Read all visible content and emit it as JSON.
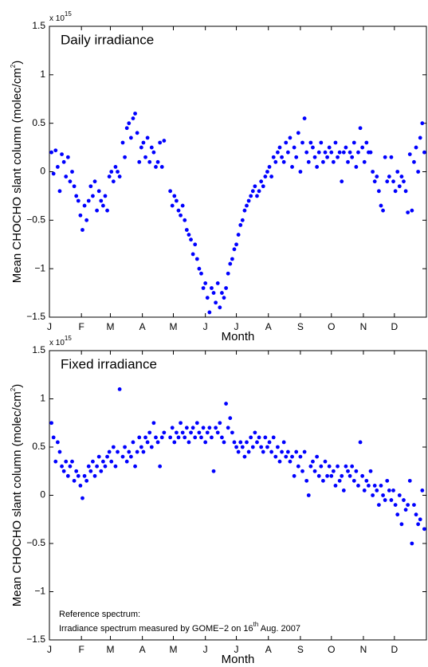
{
  "chart_data": [
    {
      "type": "scatter",
      "title": "Daily irradiance",
      "xlabel": "Month",
      "ylabel": "Mean CHOCHO slant column (molec/cm",
      "ylabel_sup": "2",
      "ylabel_end": ")",
      "multiplier": "x 10",
      "multiplier_sup": "15",
      "color": "#0000ff",
      "xlim": [
        1,
        366
      ],
      "ylim": [
        -1.5,
        1.5
      ],
      "xticks": [
        {
          "value": 1,
          "label": "J"
        },
        {
          "value": 32,
          "label": "F"
        },
        {
          "value": 60,
          "label": "M"
        },
        {
          "value": 91,
          "label": "A"
        },
        {
          "value": 121,
          "label": "M"
        },
        {
          "value": 152,
          "label": "J"
        },
        {
          "value": 182,
          "label": "J"
        },
        {
          "value": 213,
          "label": "A"
        },
        {
          "value": 244,
          "label": "S"
        },
        {
          "value": 274,
          "label": "O"
        },
        {
          "value": 305,
          "label": "N"
        },
        {
          "value": 335,
          "label": "D"
        }
      ],
      "yticks": [
        {
          "value": -1.5,
          "label": "−1.5"
        },
        {
          "value": -1,
          "label": "−1"
        },
        {
          "value": -0.5,
          "label": "−0.5"
        },
        0,
        0.5,
        1,
        1.5
      ],
      "x": [
        3,
        5,
        7,
        9,
        11,
        13,
        15,
        17,
        19,
        21,
        23,
        25,
        27,
        29,
        31,
        33,
        35,
        37,
        39,
        41,
        43,
        45,
        47,
        49,
        51,
        53,
        55,
        57,
        59,
        61,
        63,
        65,
        67,
        69,
        72,
        74,
        76,
        78,
        80,
        82,
        84,
        86,
        88,
        90,
        92,
        94,
        96,
        98,
        100,
        102,
        104,
        106,
        108,
        110,
        112,
        118,
        120,
        122,
        124,
        126,
        128,
        130,
        132,
        134,
        136,
        138,
        140,
        142,
        144,
        146,
        148,
        150,
        152,
        154,
        156,
        158,
        160,
        162,
        164,
        166,
        168,
        170,
        172,
        174,
        176,
        178,
        180,
        182,
        184,
        186,
        188,
        190,
        192,
        194,
        196,
        198,
        200,
        202,
        204,
        206,
        208,
        210,
        212,
        214,
        216,
        218,
        220,
        222,
        224,
        226,
        228,
        230,
        232,
        234,
        236,
        238,
        240,
        242,
        244,
        246,
        248,
        250,
        252,
        254,
        256,
        258,
        260,
        262,
        264,
        266,
        268,
        270,
        272,
        274,
        276,
        278,
        280,
        282,
        284,
        286,
        288,
        290,
        292,
        294,
        296,
        298,
        300,
        302,
        304,
        306,
        308,
        310,
        312,
        314,
        316,
        318,
        320,
        322,
        324,
        326,
        328,
        330,
        332,
        334,
        336,
        338,
        340,
        342,
        344,
        346,
        348,
        350,
        352,
        354,
        356,
        358,
        360,
        362,
        364
      ],
      "values": [
        0.2,
        -0.02,
        0.22,
        0.05,
        -0.2,
        0.18,
        0.1,
        -0.05,
        0.15,
        -0.1,
        0.0,
        -0.15,
        -0.25,
        -0.3,
        -0.45,
        -0.6,
        -0.35,
        -0.5,
        -0.3,
        -0.15,
        -0.25,
        -0.1,
        -0.4,
        -0.2,
        -0.3,
        -0.35,
        -0.25,
        -0.4,
        -0.05,
        0.0,
        -0.1,
        0.05,
        0.0,
        -0.05,
        0.3,
        0.15,
        0.45,
        0.5,
        0.35,
        0.55,
        0.6,
        0.4,
        0.1,
        0.25,
        0.3,
        0.15,
        0.35,
        0.1,
        0.25,
        0.2,
        0.05,
        0.1,
        0.3,
        0.05,
        0.32,
        -0.2,
        -0.35,
        -0.25,
        -0.3,
        -0.4,
        -0.45,
        -0.35,
        -0.5,
        -0.6,
        -0.65,
        -0.7,
        -0.85,
        -0.75,
        -0.9,
        -1.0,
        -1.05,
        -1.2,
        -1.15,
        -1.3,
        -1.45,
        -1.2,
        -1.25,
        -1.35,
        -1.15,
        -1.4,
        -1.25,
        -1.3,
        -1.2,
        -1.05,
        -0.95,
        -0.9,
        -0.8,
        -0.75,
        -0.65,
        -0.55,
        -0.5,
        -0.4,
        -0.35,
        -0.3,
        -0.25,
        -0.2,
        -0.15,
        -0.25,
        -0.2,
        -0.1,
        -0.15,
        -0.05,
        0.0,
        0.05,
        -0.05,
        0.15,
        0.1,
        0.2,
        0.25,
        0.15,
        0.1,
        0.3,
        0.2,
        0.35,
        0.05,
        0.25,
        0.15,
        0.4,
        0.0,
        0.3,
        0.55,
        0.2,
        0.1,
        0.3,
        0.25,
        0.15,
        0.05,
        0.2,
        0.3,
        0.1,
        0.2,
        0.15,
        0.25,
        0.2,
        0.1,
        0.3,
        0.15,
        0.2,
        -0.1,
        0.2,
        0.25,
        0.1,
        0.2,
        0.15,
        0.3,
        0.05,
        0.2,
        0.45,
        0.25,
        0.1,
        0.3,
        0.2,
        0.2,
        0.0,
        -0.1,
        -0.05,
        -0.2,
        -0.35,
        -0.4,
        0.15,
        -0.1,
        -0.05,
        0.15,
        -0.1,
        -0.2,
        0.0,
        -0.15,
        -0.05,
        -0.1,
        -0.2,
        -0.42,
        0.18,
        -0.4,
        0.1,
        0.25,
        0.0,
        0.35,
        0.5,
        0.2
      ]
    },
    {
      "type": "scatter",
      "title": "Fixed irradiance",
      "xlabel": "Month",
      "ylabel": "Mean CHOCHO slant column (molec/cm",
      "ylabel_sup": "2",
      "ylabel_end": ")",
      "multiplier": "x 10",
      "multiplier_sup": "15",
      "color": "#0000ff",
      "note": "Reference spectrum:",
      "note_line2": "Irradiance spectrum measured by GOME−2 on 16",
      "note_sup": "th",
      "note_end": " Aug. 2007",
      "xlim": [
        1,
        366
      ],
      "ylim": [
        -1.5,
        1.5
      ],
      "xticks": [
        {
          "value": 1,
          "label": "J"
        },
        {
          "value": 32,
          "label": "F"
        },
        {
          "value": 60,
          "label": "M"
        },
        {
          "value": 91,
          "label": "A"
        },
        {
          "value": 121,
          "label": "M"
        },
        {
          "value": 152,
          "label": "J"
        },
        {
          "value": 182,
          "label": "J"
        },
        {
          "value": 213,
          "label": "A"
        },
        {
          "value": 244,
          "label": "S"
        },
        {
          "value": 274,
          "label": "O"
        },
        {
          "value": 305,
          "label": "N"
        },
        {
          "value": 335,
          "label": "D"
        }
      ],
      "yticks": [
        {
          "value": -1.5,
          "label": "−1.5"
        },
        {
          "value": -1,
          "label": "−1"
        },
        {
          "value": -0.5,
          "label": "−0.5"
        },
        0,
        0.5,
        1,
        1.5
      ],
      "x": [
        3,
        5,
        7,
        9,
        11,
        13,
        15,
        17,
        19,
        21,
        23,
        25,
        27,
        29,
        31,
        33,
        35,
        37,
        39,
        41,
        43,
        45,
        47,
        49,
        51,
        53,
        55,
        57,
        59,
        61,
        63,
        65,
        67,
        69,
        72,
        74,
        76,
        78,
        80,
        82,
        84,
        86,
        88,
        90,
        92,
        94,
        96,
        98,
        100,
        102,
        104,
        106,
        108,
        110,
        112,
        118,
        120,
        122,
        124,
        126,
        128,
        130,
        132,
        134,
        136,
        138,
        140,
        142,
        144,
        146,
        148,
        150,
        152,
        154,
        156,
        158,
        160,
        162,
        164,
        166,
        168,
        170,
        172,
        174,
        176,
        178,
        180,
        182,
        184,
        186,
        188,
        190,
        192,
        194,
        196,
        198,
        200,
        202,
        204,
        206,
        208,
        210,
        212,
        214,
        216,
        218,
        220,
        222,
        224,
        226,
        228,
        230,
        232,
        234,
        236,
        238,
        240,
        242,
        244,
        246,
        248,
        250,
        252,
        254,
        256,
        258,
        260,
        262,
        264,
        266,
        268,
        270,
        272,
        274,
        276,
        278,
        280,
        282,
        284,
        286,
        288,
        290,
        292,
        294,
        296,
        298,
        300,
        302,
        304,
        306,
        308,
        310,
        312,
        314,
        316,
        318,
        320,
        322,
        324,
        326,
        328,
        330,
        332,
        334,
        336,
        338,
        340,
        342,
        344,
        346,
        348,
        350,
        352,
        354,
        356,
        358,
        360,
        362,
        364
      ],
      "values": [
        0.75,
        0.6,
        0.35,
        0.55,
        0.45,
        0.3,
        0.25,
        0.35,
        0.2,
        0.3,
        0.35,
        0.15,
        0.25,
        0.2,
        0.1,
        -0.03,
        0.2,
        0.15,
        0.3,
        0.25,
        0.35,
        0.2,
        0.3,
        0.4,
        0.25,
        0.35,
        0.3,
        0.4,
        0.45,
        0.35,
        0.5,
        0.3,
        0.45,
        1.1,
        0.4,
        0.5,
        0.35,
        0.45,
        0.4,
        0.55,
        0.3,
        0.45,
        0.6,
        0.5,
        0.45,
        0.6,
        0.55,
        0.65,
        0.5,
        0.75,
        0.6,
        0.55,
        0.3,
        0.6,
        0.65,
        0.6,
        0.7,
        0.55,
        0.65,
        0.6,
        0.75,
        0.65,
        0.6,
        0.7,
        0.55,
        0.65,
        0.7,
        0.6,
        0.75,
        0.65,
        0.6,
        0.7,
        0.55,
        0.65,
        0.7,
        0.6,
        0.25,
        0.7,
        0.65,
        0.75,
        0.6,
        0.55,
        0.95,
        0.7,
        0.8,
        0.65,
        0.55,
        0.5,
        0.45,
        0.55,
        0.5,
        0.4,
        0.55,
        0.45,
        0.6,
        0.5,
        0.65,
        0.55,
        0.6,
        0.5,
        0.45,
        0.6,
        0.5,
        0.55,
        0.45,
        0.6,
        0.4,
        0.5,
        0.35,
        0.45,
        0.55,
        0.4,
        0.45,
        0.35,
        0.4,
        0.2,
        0.45,
        0.3,
        0.4,
        0.25,
        0.45,
        0.15,
        0.0,
        0.3,
        0.35,
        0.25,
        0.4,
        0.2,
        0.3,
        0.15,
        0.35,
        0.2,
        0.3,
        0.2,
        0.25,
        0.1,
        0.3,
        0.15,
        0.2,
        0.05,
        0.3,
        0.25,
        0.2,
        0.3,
        0.15,
        0.25,
        0.1,
        0.55,
        0.2,
        0.05,
        0.15,
        0.1,
        0.25,
        0.0,
        0.1,
        0.05,
        -0.1,
        0.1,
        0.0,
        -0.05,
        0.15,
        0.05,
        -0.05,
        0.05,
        -0.1,
        -0.2,
        0.0,
        -0.3,
        -0.05,
        -0.15,
        -0.1,
        0.15,
        -0.5,
        -0.1,
        -0.2,
        -0.3,
        -0.25,
        0.05,
        -0.35
      ]
    }
  ]
}
